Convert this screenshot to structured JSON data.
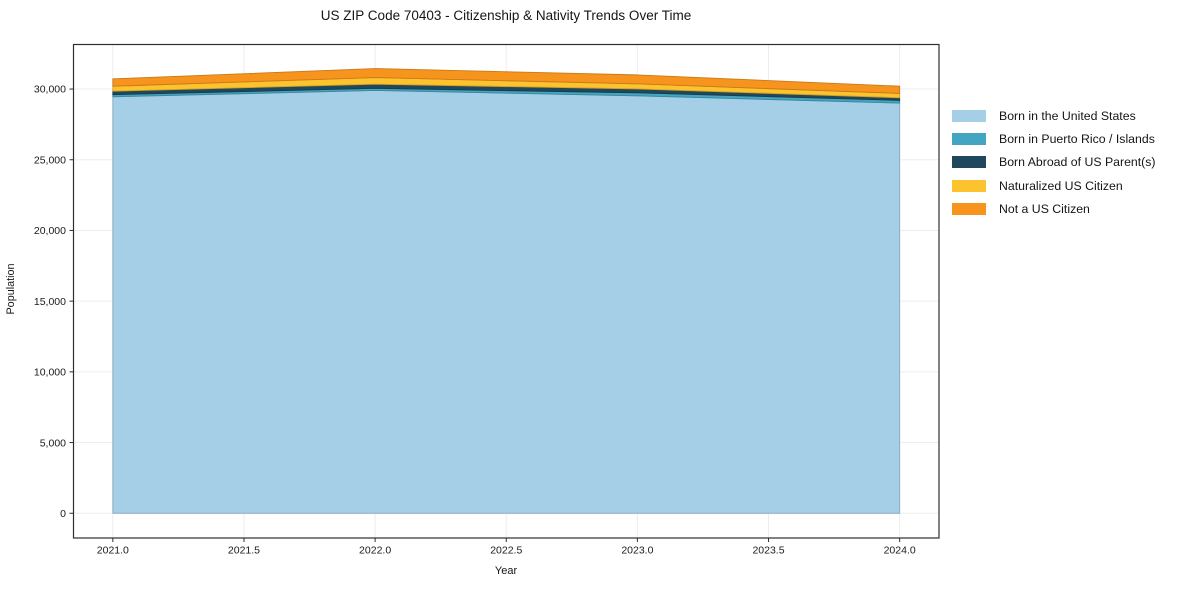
{
  "figure": {
    "background": "#ffffff",
    "frame_color": "#2e2e2e",
    "grid_color": "#ededed"
  },
  "chart_data": {
    "type": "area",
    "stacked": true,
    "title": "US ZIP Code 70403 - Citizenship & Nativity Trends Over Time",
    "xlabel": "Year",
    "ylabel": "Population",
    "x": [
      2021,
      2022,
      2023,
      2024
    ],
    "series": [
      {
        "name": "Born in the United States",
        "color": "#a5cfe6",
        "values": [
          29450,
          29900,
          29520,
          29010
        ]
      },
      {
        "name": "Born in Puerto Rico / Islands",
        "color": "#44a5c2",
        "values": [
          150,
          150,
          210,
          190
        ]
      },
      {
        "name": "Born Abroad of US Parent(s)",
        "color": "#1f485c",
        "values": [
          250,
          290,
          280,
          180
        ]
      },
      {
        "name": "Naturalized US Citizen",
        "color": "#fcc32f",
        "values": [
          350,
          470,
          360,
          310
        ]
      },
      {
        "name": "Not a US Citizen",
        "color": "#f6941e",
        "values": [
          520,
          640,
          630,
          510
        ]
      }
    ],
    "xlim": [
      2020.85,
      2024.15
    ],
    "ylim": [
      -1750,
      33150
    ],
    "x_tick_values": [
      2021.0,
      2021.5,
      2022.0,
      2022.5,
      2023.0,
      2023.5,
      2024.0
    ],
    "x_tick_labels": [
      "2021.0",
      "2021.5",
      "2022.0",
      "2022.5",
      "2023.0",
      "2023.5",
      "2024.0"
    ],
    "y_tick_values": [
      0,
      5000,
      10000,
      15000,
      20000,
      25000,
      30000
    ],
    "y_tick_labels": [
      "0",
      "5,000",
      "10,000",
      "15,000",
      "20,000",
      "25,000",
      "30,000"
    ],
    "grid": true,
    "legend_position": "right-of-plot"
  }
}
